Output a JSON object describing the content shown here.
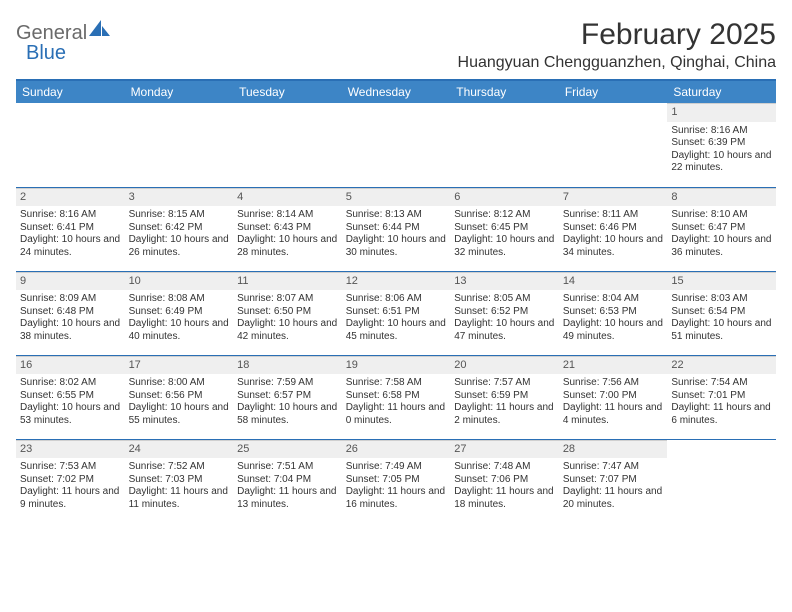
{
  "brand": {
    "part1": "General",
    "part2": "Blue"
  },
  "title": "February 2025",
  "location": "Huangyuan Chengguanzhen, Qinghai, China",
  "colors": {
    "header_bg": "#3d85c6",
    "accent": "#2a6fb5",
    "daynum_bg": "#efefef",
    "text": "#333333"
  },
  "day_names": [
    "Sunday",
    "Monday",
    "Tuesday",
    "Wednesday",
    "Thursday",
    "Friday",
    "Saturday"
  ],
  "weeks": [
    [
      {
        "n": "",
        "sr": "",
        "ss": "",
        "dl": ""
      },
      {
        "n": "",
        "sr": "",
        "ss": "",
        "dl": ""
      },
      {
        "n": "",
        "sr": "",
        "ss": "",
        "dl": ""
      },
      {
        "n": "",
        "sr": "",
        "ss": "",
        "dl": ""
      },
      {
        "n": "",
        "sr": "",
        "ss": "",
        "dl": ""
      },
      {
        "n": "",
        "sr": "",
        "ss": "",
        "dl": ""
      },
      {
        "n": "1",
        "sr": "Sunrise: 8:16 AM",
        "ss": "Sunset: 6:39 PM",
        "dl": "Daylight: 10 hours and 22 minutes."
      }
    ],
    [
      {
        "n": "2",
        "sr": "Sunrise: 8:16 AM",
        "ss": "Sunset: 6:41 PM",
        "dl": "Daylight: 10 hours and 24 minutes."
      },
      {
        "n": "3",
        "sr": "Sunrise: 8:15 AM",
        "ss": "Sunset: 6:42 PM",
        "dl": "Daylight: 10 hours and 26 minutes."
      },
      {
        "n": "4",
        "sr": "Sunrise: 8:14 AM",
        "ss": "Sunset: 6:43 PM",
        "dl": "Daylight: 10 hours and 28 minutes."
      },
      {
        "n": "5",
        "sr": "Sunrise: 8:13 AM",
        "ss": "Sunset: 6:44 PM",
        "dl": "Daylight: 10 hours and 30 minutes."
      },
      {
        "n": "6",
        "sr": "Sunrise: 8:12 AM",
        "ss": "Sunset: 6:45 PM",
        "dl": "Daylight: 10 hours and 32 minutes."
      },
      {
        "n": "7",
        "sr": "Sunrise: 8:11 AM",
        "ss": "Sunset: 6:46 PM",
        "dl": "Daylight: 10 hours and 34 minutes."
      },
      {
        "n": "8",
        "sr": "Sunrise: 8:10 AM",
        "ss": "Sunset: 6:47 PM",
        "dl": "Daylight: 10 hours and 36 minutes."
      }
    ],
    [
      {
        "n": "9",
        "sr": "Sunrise: 8:09 AM",
        "ss": "Sunset: 6:48 PM",
        "dl": "Daylight: 10 hours and 38 minutes."
      },
      {
        "n": "10",
        "sr": "Sunrise: 8:08 AM",
        "ss": "Sunset: 6:49 PM",
        "dl": "Daylight: 10 hours and 40 minutes."
      },
      {
        "n": "11",
        "sr": "Sunrise: 8:07 AM",
        "ss": "Sunset: 6:50 PM",
        "dl": "Daylight: 10 hours and 42 minutes."
      },
      {
        "n": "12",
        "sr": "Sunrise: 8:06 AM",
        "ss": "Sunset: 6:51 PM",
        "dl": "Daylight: 10 hours and 45 minutes."
      },
      {
        "n": "13",
        "sr": "Sunrise: 8:05 AM",
        "ss": "Sunset: 6:52 PM",
        "dl": "Daylight: 10 hours and 47 minutes."
      },
      {
        "n": "14",
        "sr": "Sunrise: 8:04 AM",
        "ss": "Sunset: 6:53 PM",
        "dl": "Daylight: 10 hours and 49 minutes."
      },
      {
        "n": "15",
        "sr": "Sunrise: 8:03 AM",
        "ss": "Sunset: 6:54 PM",
        "dl": "Daylight: 10 hours and 51 minutes."
      }
    ],
    [
      {
        "n": "16",
        "sr": "Sunrise: 8:02 AM",
        "ss": "Sunset: 6:55 PM",
        "dl": "Daylight: 10 hours and 53 minutes."
      },
      {
        "n": "17",
        "sr": "Sunrise: 8:00 AM",
        "ss": "Sunset: 6:56 PM",
        "dl": "Daylight: 10 hours and 55 minutes."
      },
      {
        "n": "18",
        "sr": "Sunrise: 7:59 AM",
        "ss": "Sunset: 6:57 PM",
        "dl": "Daylight: 10 hours and 58 minutes."
      },
      {
        "n": "19",
        "sr": "Sunrise: 7:58 AM",
        "ss": "Sunset: 6:58 PM",
        "dl": "Daylight: 11 hours and 0 minutes."
      },
      {
        "n": "20",
        "sr": "Sunrise: 7:57 AM",
        "ss": "Sunset: 6:59 PM",
        "dl": "Daylight: 11 hours and 2 minutes."
      },
      {
        "n": "21",
        "sr": "Sunrise: 7:56 AM",
        "ss": "Sunset: 7:00 PM",
        "dl": "Daylight: 11 hours and 4 minutes."
      },
      {
        "n": "22",
        "sr": "Sunrise: 7:54 AM",
        "ss": "Sunset: 7:01 PM",
        "dl": "Daylight: 11 hours and 6 minutes."
      }
    ],
    [
      {
        "n": "23",
        "sr": "Sunrise: 7:53 AM",
        "ss": "Sunset: 7:02 PM",
        "dl": "Daylight: 11 hours and 9 minutes."
      },
      {
        "n": "24",
        "sr": "Sunrise: 7:52 AM",
        "ss": "Sunset: 7:03 PM",
        "dl": "Daylight: 11 hours and 11 minutes."
      },
      {
        "n": "25",
        "sr": "Sunrise: 7:51 AM",
        "ss": "Sunset: 7:04 PM",
        "dl": "Daylight: 11 hours and 13 minutes."
      },
      {
        "n": "26",
        "sr": "Sunrise: 7:49 AM",
        "ss": "Sunset: 7:05 PM",
        "dl": "Daylight: 11 hours and 16 minutes."
      },
      {
        "n": "27",
        "sr": "Sunrise: 7:48 AM",
        "ss": "Sunset: 7:06 PM",
        "dl": "Daylight: 11 hours and 18 minutes."
      },
      {
        "n": "28",
        "sr": "Sunrise: 7:47 AM",
        "ss": "Sunset: 7:07 PM",
        "dl": "Daylight: 11 hours and 20 minutes."
      },
      {
        "n": "",
        "sr": "",
        "ss": "",
        "dl": ""
      }
    ]
  ]
}
